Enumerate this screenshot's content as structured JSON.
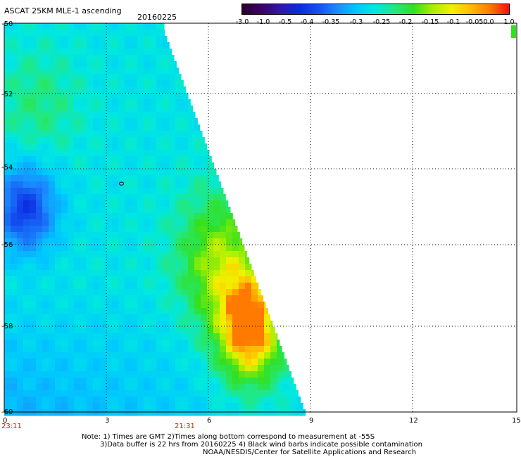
{
  "header": {
    "title": "ASCAT 25KM MLE-1 ascending",
    "date": "20160225"
  },
  "colorbar": {
    "labels": [
      "-3.0",
      "-1.0",
      "-0.5",
      "-0.4",
      "-0.35",
      "-0.3",
      "-0.25",
      "-0.2",
      "-0.15",
      "-0.1",
      "-0.05",
      "0.0",
      "1.0"
    ]
  },
  "axes": {
    "x_ticks": [
      "0",
      "3",
      "6",
      "9",
      "12",
      "15"
    ],
    "y_ticks": [
      "-50",
      "-52",
      "-54",
      "-56",
      "-58",
      "-60"
    ],
    "time_labels": [
      "23:11",
      "21:31"
    ]
  },
  "annotation": "0",
  "notes": [
    "Note: 1) Times are GMT 2)Times along bottom correspond to measurement at -55S",
    "3)Data buffer is 22 hrs from 20160225 4) Black wind barbs indicate possible contamination",
    "NOAA/NESDIS/Center for Satellite Applications and Research"
  ],
  "colors": {
    "scale": [
      "#2a002a",
      "#3c0066",
      "#3018a8",
      "#0a2ae0",
      "#1550f0",
      "#1a8cff",
      "#00c8ff",
      "#00e8e0",
      "#22e880",
      "#33e020",
      "#aaee00",
      "#f2f000",
      "#ffbb00",
      "#ff7a00",
      "#f01010"
    ]
  }
}
